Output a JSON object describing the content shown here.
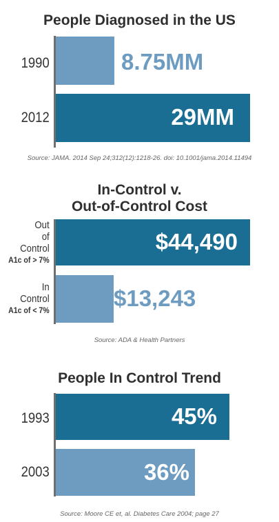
{
  "colors": {
    "dark": "#1a6e94",
    "light": "#6e9cc0"
  },
  "chart_data": [
    {
      "type": "bar",
      "title": "People Diagnosed in the US",
      "categories": [
        "1990",
        "2012"
      ],
      "values": [
        8.75,
        29
      ],
      "value_labels": [
        "8.75MM",
        "29MM"
      ],
      "unit": "MM",
      "source": "Source: JAMA. 2014 Sep 24;312(12):1218-26. doi: 10.1001/jama.2014.11494"
    },
    {
      "type": "bar",
      "title_lines": [
        "In-Control v.",
        "Out-of-Control Cost"
      ],
      "categories": [
        {
          "line1": "Out",
          "line2": "of",
          "line3": "Control",
          "sub": "A1c of > 7%"
        },
        {
          "line1": "In",
          "line2": "Control",
          "sub": "A1c of < 7%"
        }
      ],
      "values": [
        44490,
        13243
      ],
      "value_labels": [
        "$44,490",
        "$13,243"
      ],
      "source": "Source: ADA & Health Partners"
    },
    {
      "type": "bar",
      "title": "People In Control Trend",
      "categories": [
        "1993",
        "2003"
      ],
      "values": [
        45,
        36
      ],
      "value_labels": [
        "45%",
        "36%"
      ],
      "source": "Source: Moore CE et, al. Diabetes Care 2004; page 27"
    }
  ]
}
